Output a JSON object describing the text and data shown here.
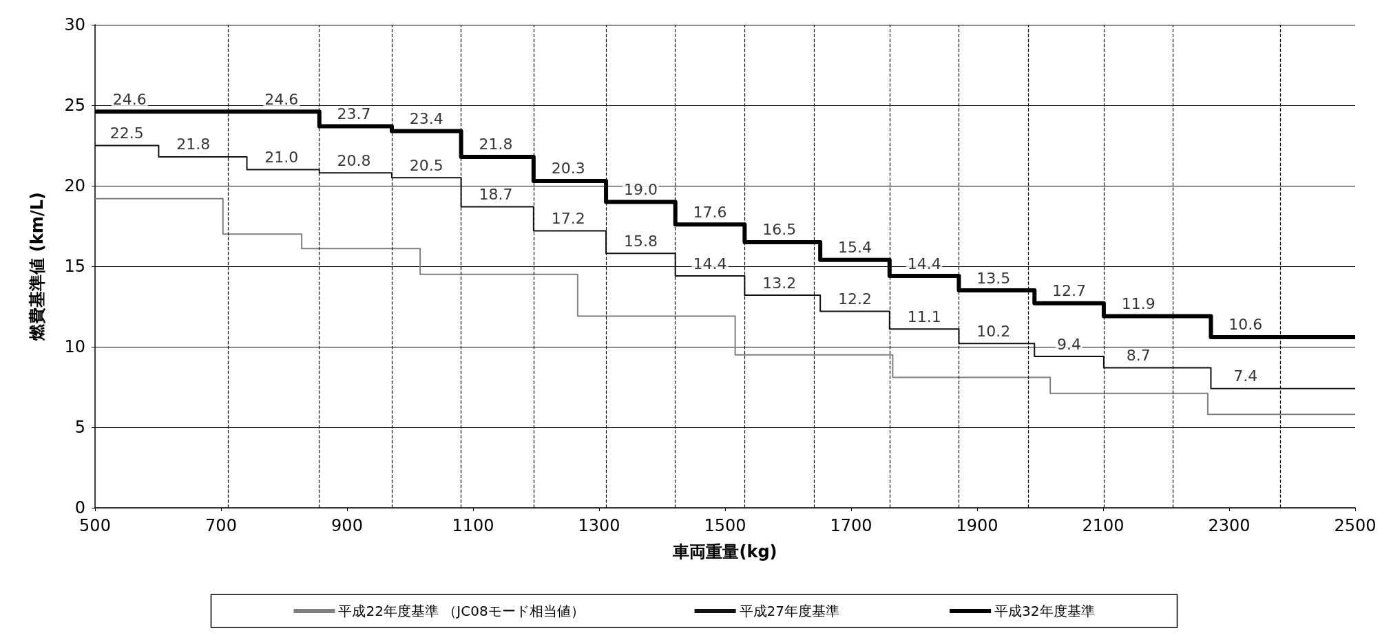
{
  "chart_data": {
    "type": "step",
    "xlabel": "車両重量(kg)",
    "ylabel": "燃費基準値 (km/L)",
    "xlim": [
      500,
      2500
    ],
    "xticks": [
      500,
      700,
      900,
      1100,
      1300,
      1500,
      1700,
      1900,
      2100,
      2300,
      2500
    ],
    "ylim": [
      0,
      30
    ],
    "yticks": [
      0,
      5,
      10,
      15,
      20,
      25,
      30
    ],
    "grid": "y",
    "legend": "bottom",
    "line_style": "solid",
    "marker": "none",
    "series": [
      {
        "name": "平成22年度基準 （JC08モード相当値）",
        "color": "#808080",
        "x": [
          500,
          703,
          828,
          1016,
          1266,
          1516,
          1766,
          2016,
          2266,
          2500
        ],
        "values": [
          19.2,
          17.0,
          16.1,
          14.5,
          11.9,
          9.5,
          8.1,
          7.1,
          5.8,
          5.8
        ]
      },
      {
        "name": "平成27年度基準",
        "color": "#111111",
        "x": [
          500,
          601,
          741,
          856,
          971,
          1081,
          1196,
          1311,
          1421,
          1531,
          1651,
          1761,
          1871,
          1991,
          2101,
          2271,
          2500
        ],
        "values": [
          22.5,
          21.8,
          21.0,
          20.8,
          20.5,
          18.7,
          17.2,
          15.8,
          14.4,
          13.2,
          12.2,
          11.1,
          10.2,
          9.4,
          8.7,
          7.4,
          7.4
        ],
        "value_labels": [
          "22.5",
          "21.8",
          "21.0",
          "20.8",
          "20.5",
          "18.7",
          "17.2",
          "15.8",
          "14.4",
          "13.2",
          "12.2",
          "11.1",
          "10.2",
          "9.4",
          "8.7",
          "7.4",
          null
        ]
      },
      {
        "name": "平成32年度基準",
        "color": "#000000",
        "x": [
          500,
          741,
          856,
          971,
          1081,
          1196,
          1311,
          1421,
          1531,
          1651,
          1761,
          1871,
          1991,
          2101,
          2271,
          2500
        ],
        "values": [
          24.6,
          24.6,
          23.7,
          23.4,
          21.8,
          20.3,
          19.0,
          17.6,
          16.5,
          15.4,
          14.4,
          13.5,
          12.7,
          11.9,
          10.6,
          10.6
        ],
        "value_labels": [
          "24.6",
          "24.6",
          "23.7",
          "23.4",
          "21.8",
          "20.3",
          "19.0",
          "17.6",
          "16.5",
          "15.4",
          "14.4",
          "13.5",
          "12.7",
          "11.9",
          "10.6",
          null
        ]
      }
    ],
    "ref_lines": [
      {
        "axis": "x",
        "value": 711,
        "line_style": "dashed"
      },
      {
        "axis": "x",
        "value": 856,
        "line_style": "dashed"
      },
      {
        "axis": "x",
        "value": 971,
        "line_style": "dashed"
      },
      {
        "axis": "x",
        "value": 1081,
        "line_style": "dashed"
      },
      {
        "axis": "x",
        "value": 1196,
        "line_style": "dashed"
      },
      {
        "axis": "x",
        "value": 1311,
        "line_style": "dashed"
      },
      {
        "axis": "x",
        "value": 1421,
        "line_style": "dashed"
      },
      {
        "axis": "x",
        "value": 1531,
        "line_style": "dashed"
      },
      {
        "axis": "x",
        "value": 1641,
        "line_style": "dashed"
      },
      {
        "axis": "x",
        "value": 1761,
        "line_style": "dashed"
      },
      {
        "axis": "x",
        "value": 1871,
        "line_style": "dashed"
      },
      {
        "axis": "x",
        "value": 1981,
        "line_style": "dashed"
      },
      {
        "axis": "x",
        "value": 2101,
        "line_style": "dashed"
      },
      {
        "axis": "x",
        "value": 2211,
        "line_style": "dashed"
      },
      {
        "axis": "x",
        "value": 2381,
        "line_style": "dashed"
      }
    ]
  }
}
